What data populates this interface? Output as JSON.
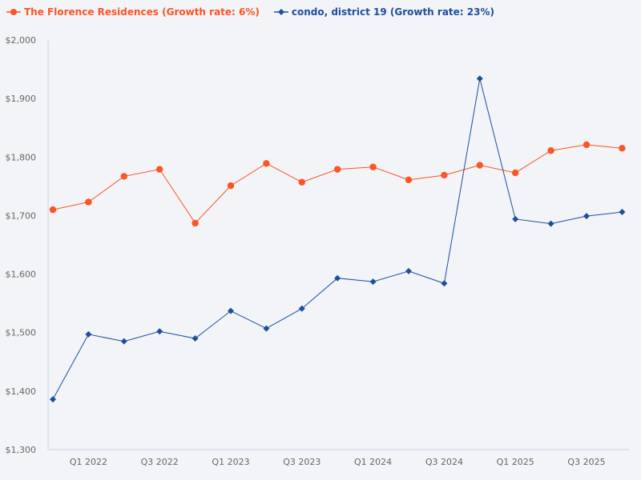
{
  "chart_data": {
    "type": "line",
    "title": "",
    "xlabel": "",
    "ylabel": "",
    "ylim": [
      1300,
      2000
    ],
    "yticks": [
      "$1,300",
      "$1,400",
      "$1,500",
      "$1,600",
      "$1,700",
      "$1,800",
      "$1,900",
      "$2,000"
    ],
    "ytick_values": [
      1300,
      1400,
      1500,
      1600,
      1700,
      1800,
      1900,
      2000
    ],
    "x": [
      "Q4 2021",
      "Q1 2022",
      "Q2 2022",
      "Q3 2022",
      "Q4 2022",
      "Q1 2023",
      "Q2 2023",
      "Q3 2023",
      "Q4 2023",
      "Q1 2024",
      "Q2 2024",
      "Q3 2024",
      "Q4 2024",
      "Q1 2025",
      "Q2 2025",
      "Q3 2025",
      "Q4 2025"
    ],
    "xtick_labels": [
      "Q1 2022",
      "Q3 2022",
      "Q1 2023",
      "Q3 2023",
      "Q1 2024",
      "Q3 2024",
      "Q1 2025",
      "Q3 2025"
    ],
    "grid": false,
    "legend_placement": "top-left",
    "series": [
      {
        "name": "The Florence Residences (Growth rate: 6%)",
        "color": "#fc5424",
        "marker": "circle",
        "values": [
          1710,
          1723,
          1767,
          1779,
          1687,
          1751,
          1789,
          1757,
          1779,
          1783,
          1761,
          1769,
          1786,
          1773,
          1811,
          1821,
          1815
        ]
      },
      {
        "name": "condo, district 19 (Growth rate: 23%)",
        "color": "#1f4ea0",
        "marker": "diamond",
        "values": [
          1386,
          1497,
          1485,
          1502,
          1490,
          1537,
          1507,
          1541,
          1593,
          1587,
          1605,
          1584,
          1934,
          1694,
          1686,
          1699,
          1706
        ]
      }
    ]
  }
}
